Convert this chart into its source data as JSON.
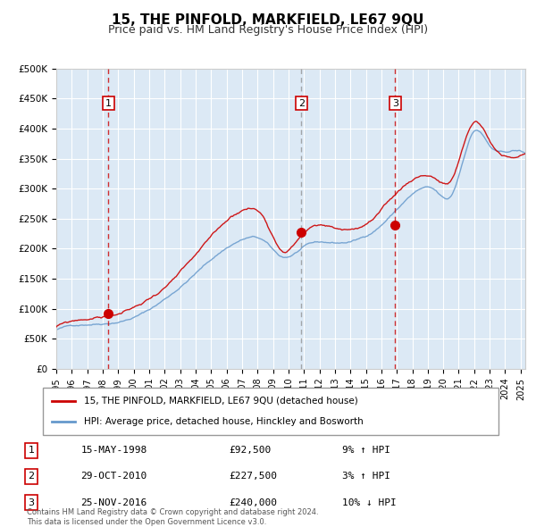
{
  "title": "15, THE PINFOLD, MARKFIELD, LE67 9QU",
  "subtitle": "Price paid vs. HM Land Registry's House Price Index (HPI)",
  "bg_color": "#dce9f5",
  "plot_bg_color": "#dce9f5",
  "red_color": "#cc0000",
  "blue_color": "#6699cc",
  "grid_color": "#ffffff",
  "dashed_line_color": "#cc0000",
  "sale3_dashed_color": "#aaaaaa",
  "ylim": [
    0,
    500000
  ],
  "yticks": [
    0,
    50000,
    100000,
    150000,
    200000,
    250000,
    300000,
    350000,
    400000,
    450000,
    500000
  ],
  "ytick_labels": [
    "£0",
    "£50K",
    "£100K",
    "£150K",
    "£200K",
    "£250K",
    "£300K",
    "£350K",
    "£400K",
    "£450K",
    "£500K"
  ],
  "start_year": 1995.0,
  "end_year": 2025.3,
  "sale1": {
    "date_num": 1998.37,
    "price": 92500,
    "label": "1"
  },
  "sale2": {
    "date_num": 2010.83,
    "price": 227500,
    "label": "2"
  },
  "sale3": {
    "date_num": 2016.9,
    "price": 240000,
    "label": "3"
  },
  "legend_line1": "15, THE PINFOLD, MARKFIELD, LE67 9QU (detached house)",
  "legend_line2": "HPI: Average price, detached house, Hinckley and Bosworth",
  "table_entries": [
    {
      "num": "1",
      "date": "15-MAY-1998",
      "price": "£92,500",
      "hpi": "9% ↑ HPI"
    },
    {
      "num": "2",
      "date": "29-OCT-2010",
      "price": "£227,500",
      "hpi": "3% ↑ HPI"
    },
    {
      "num": "3",
      "date": "25-NOV-2016",
      "price": "£240,000",
      "hpi": "10% ↓ HPI"
    }
  ],
  "footnote": "Contains HM Land Registry data © Crown copyright and database right 2024.\nThis data is licensed under the Open Government Licence v3.0.",
  "xtick_years": [
    1995,
    1996,
    1997,
    1998,
    1999,
    2000,
    2001,
    2002,
    2003,
    2004,
    2005,
    2006,
    2007,
    2008,
    2009,
    2010,
    2011,
    2012,
    2013,
    2014,
    2015,
    2016,
    2017,
    2018,
    2019,
    2020,
    2021,
    2022,
    2023,
    2024,
    2025
  ]
}
